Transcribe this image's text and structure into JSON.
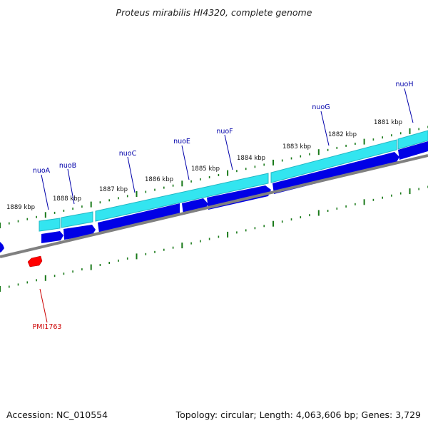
{
  "title": "Proteus mirabilis HI4320, complete genome",
  "footer": {
    "accession": "Accession: NC_010554",
    "summary": "Topology: circular; Length: 4,063,606 bp; Genes: 3,729"
  },
  "colors": {
    "forward_gene": "#0000e6",
    "cds_band": "#33e5f0",
    "minus_gene": "#ff0000",
    "ticks": "#1a7a1a",
    "backbone": "#808080",
    "label_blue": "#0000aa",
    "label_red": "#cc0000"
  },
  "ticks": [
    {
      "label": "1889 kbp"
    },
    {
      "label": "1888 kbp"
    },
    {
      "label": "1887 kbp"
    },
    {
      "label": "1886 kbp"
    },
    {
      "label": "1885 kbp"
    },
    {
      "label": "1884 kbp"
    },
    {
      "label": "1883 kbp"
    },
    {
      "label": "1882 kbp"
    },
    {
      "label": "1881 kbp"
    }
  ],
  "genes": [
    {
      "name": "nuoA"
    },
    {
      "name": "nuoB"
    },
    {
      "name": "nuoC"
    },
    {
      "name": "nuoE"
    },
    {
      "name": "nuoF"
    },
    {
      "name": "nuoG"
    },
    {
      "name": "nuoH"
    },
    {
      "name": "PMI1763"
    }
  ]
}
